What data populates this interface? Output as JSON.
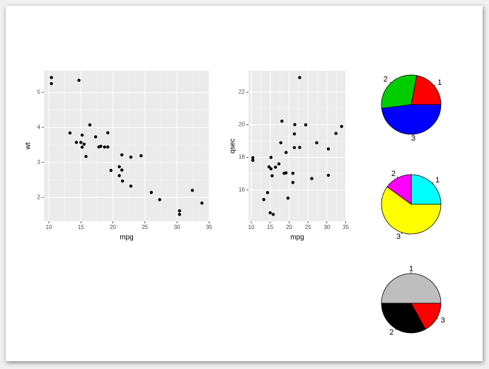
{
  "chart_data": [
    {
      "type": "scatter",
      "x_label": "mpg",
      "y_label": "wt",
      "x": [
        21.0,
        21.0,
        22.8,
        21.4,
        18.7,
        18.1,
        14.3,
        24.4,
        22.8,
        19.2,
        17.8,
        16.4,
        17.3,
        15.2,
        10.4,
        10.4,
        14.7,
        32.4,
        30.4,
        33.9,
        21.5,
        15.5,
        15.2,
        13.3,
        19.2,
        27.3,
        26.0,
        30.4,
        15.8,
        19.7,
        15.0,
        21.4
      ],
      "y": [
        2.62,
        2.875,
        2.32,
        3.215,
        3.44,
        3.46,
        3.57,
        3.19,
        3.15,
        3.44,
        3.44,
        4.07,
        3.73,
        3.78,
        5.25,
        5.424,
        5.345,
        2.2,
        1.615,
        1.835,
        2.465,
        3.52,
        3.435,
        3.84,
        3.845,
        1.935,
        2.14,
        1.513,
        3.17,
        2.77,
        3.57,
        2.78
      ],
      "color": "#000000",
      "background": "#ebebeb",
      "grid": true,
      "xlim": [
        9.225,
        35.075
      ],
      "xticks": [
        10,
        15,
        20,
        25,
        30,
        35
      ],
      "ylim": [
        1.317,
        5.62
      ],
      "yticks": [
        2,
        3,
        4,
        5
      ]
    },
    {
      "type": "scatter",
      "x_label": "mpg",
      "y_label": "qsec",
      "x": [
        21.0,
        21.0,
        22.8,
        21.4,
        18.7,
        18.1,
        14.3,
        24.4,
        22.8,
        19.2,
        17.8,
        16.4,
        17.3,
        15.2,
        10.4,
        10.4,
        14.7,
        32.4,
        30.4,
        33.9,
        21.5,
        15.5,
        15.2,
        13.3,
        19.2,
        27.3,
        26.0,
        30.4,
        15.8,
        19.7,
        15.0,
        21.4
      ],
      "y": [
        16.46,
        17.02,
        18.61,
        19.44,
        17.02,
        20.22,
        15.84,
        20.0,
        22.9,
        18.3,
        18.9,
        17.4,
        17.6,
        18.0,
        17.98,
        17.82,
        17.42,
        19.47,
        18.52,
        19.9,
        20.01,
        16.87,
        17.3,
        15.41,
        17.05,
        18.9,
        16.7,
        16.9,
        14.5,
        15.5,
        14.6,
        18.6
      ],
      "color": "#000000",
      "background": "#ebebeb",
      "grid": true,
      "xlim": [
        9.225,
        35.075
      ],
      "xticks": [
        10,
        15,
        20,
        25,
        30,
        35
      ],
      "ylim": [
        14.08,
        23.32
      ],
      "yticks": [
        16,
        18,
        20,
        22
      ]
    },
    {
      "type": "pie",
      "labels": [
        "1",
        "2",
        "3"
      ],
      "values": [
        22,
        30,
        48
      ],
      "colors": [
        "#ff0000",
        "#00cd00",
        "#0000ff"
      ]
    },
    {
      "type": "pie",
      "labels": [
        "1",
        "2",
        "3"
      ],
      "values": [
        25,
        15,
        60
      ],
      "colors": [
        "#00ffff",
        "#ff00ff",
        "#ffff00"
      ]
    },
    {
      "type": "pie",
      "labels": [
        "1",
        "2",
        "3"
      ],
      "values": [
        50,
        33,
        17
      ],
      "colors": [
        "#bebebe",
        "#000000",
        "#ff0000"
      ]
    }
  ]
}
